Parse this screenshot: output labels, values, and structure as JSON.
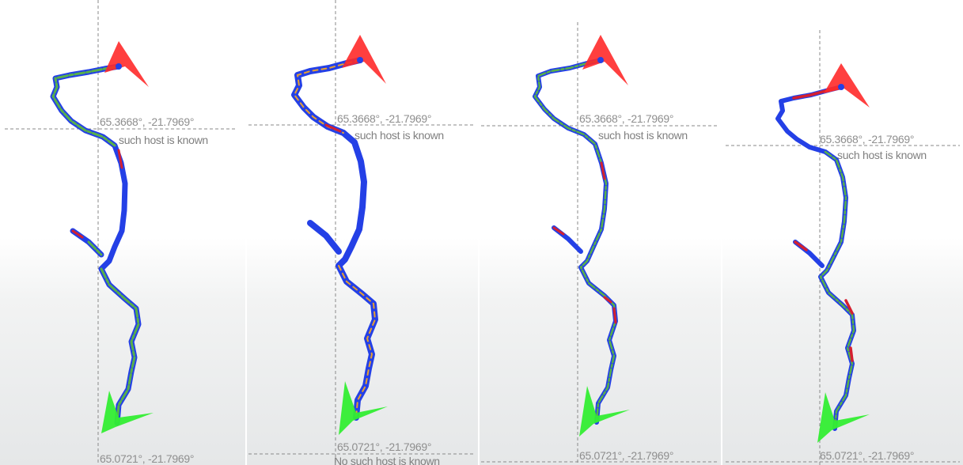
{
  "panels": [
    {
      "top_coord": "65.3668°, -21.7969°",
      "top_host": "such host is known",
      "bottom_coord": "65.0721°, -21.7969°",
      "bottom_host": ""
    },
    {
      "top_coord": "65.3668°, -21.7969°",
      "top_host": "such host is known",
      "bottom_coord": "65.0721°, -21.7969°",
      "bottom_host": "No such host is known"
    },
    {
      "top_coord": "65.3668°, -21.7969°",
      "top_host": "such host is known",
      "bottom_coord": "65.0721°, -21.7969°",
      "bottom_host": ""
    },
    {
      "top_coord": "65.3668°, -21.7969°",
      "top_host": "such host is known",
      "bottom_coord": "65.0721°, -21.7969°",
      "bottom_host": ""
    }
  ],
  "colors": {
    "track_outline": "#2440e6",
    "track_green": "#58b04a",
    "track_red": "#d42030",
    "track_orange": "#e8a030",
    "start_arrow": "#ff2a2a",
    "end_arrow": "#33ee33",
    "crosshair": "#8a8a8a"
  },
  "icons": {
    "start": "red-arrow-marker",
    "end": "green-arrow-marker"
  }
}
